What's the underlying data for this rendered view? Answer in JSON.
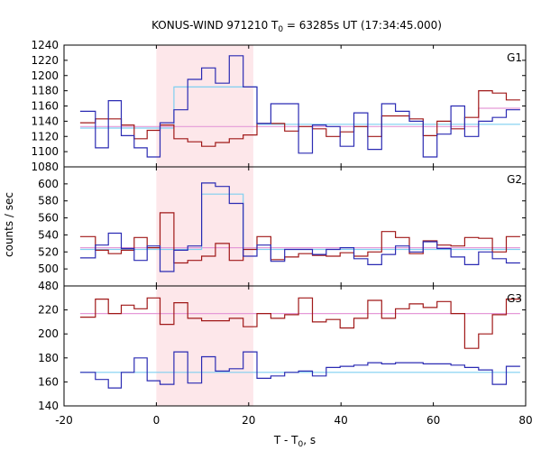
{
  "chart_data": {
    "type": "line",
    "title": {
      "prefix": "KONUS-WIND 971210 T",
      "sub": "0",
      "suffix": " = 63285s UT (17:34:45.000)"
    },
    "xlabel": {
      "prefix": "T - T",
      "sub": "0",
      "suffix": ", s"
    },
    "ylabel": "counts / sec",
    "xlim": [
      -20,
      80
    ],
    "x_ticks": [
      -20,
      0,
      20,
      40,
      60,
      80
    ],
    "highlight_interval": [
      0,
      21
    ],
    "colors": {
      "highlight": "#fde7ea",
      "series_a": "#2b2bb3",
      "series_b": "#a01818",
      "fit_a": "#7fcff0",
      "fit_b": "#e59ad8"
    },
    "x_edges": [
      -16.5,
      -13.2,
      -10.4,
      -7.6,
      -4.8,
      -2,
      0.8,
      3.8,
      6.8,
      9.8,
      12.8,
      15.8,
      18.8,
      21.8,
      24.8,
      27.8,
      30.8,
      33.8,
      36.8,
      39.8,
      42.8,
      45.8,
      48.8,
      51.8,
      54.8,
      57.8,
      60.8,
      63.8,
      66.8,
      69.8,
      72.8,
      75.8,
      78.8
    ],
    "panels": [
      {
        "name": "G1",
        "ylim": [
          1080,
          1240
        ],
        "y_ticks": [
          1080,
          1100,
          1120,
          1140,
          1160,
          1180,
          1200,
          1220,
          1240
        ],
        "series_a": [
          1153,
          1105,
          1167,
          1121,
          1105,
          1093,
          1138,
          1155,
          1195,
          1210,
          1190,
          1226,
          1185,
          1137,
          1163,
          1163,
          1098,
          1135,
          1133,
          1107,
          1151,
          1103,
          1163,
          1153,
          1140,
          1093,
          1123,
          1160,
          1120,
          1140,
          1145,
          1155
        ],
        "series_b": [
          1138,
          1143,
          1143,
          1135,
          1117,
          1128,
          1135,
          1117,
          1113,
          1107,
          1112,
          1117,
          1122,
          1137,
          1137,
          1127,
          1133,
          1130,
          1120,
          1126,
          1133,
          1120,
          1147,
          1147,
          1143,
          1121,
          1140,
          1130,
          1145,
          1180,
          1177,
          1168
        ],
        "fit_a": [
          1131,
          1131,
          1131,
          1131,
          1131,
          1131,
          1131,
          1185,
          1185,
          1185,
          1185,
          1185,
          1185,
          1136,
          1136,
          1136,
          1136,
          1136,
          1136,
          1136,
          1136,
          1136,
          1136,
          1136,
          1136,
          1136,
          1136,
          1136,
          1136,
          1136,
          1136,
          1136
        ],
        "fit_b": [
          1133,
          1133,
          1133,
          1133,
          1133,
          1133,
          1133,
          1133,
          1133,
          1133,
          1133,
          1133,
          1133,
          1133,
          1133,
          1133,
          1133,
          1133,
          1133,
          1133,
          1133,
          1133,
          1133,
          1133,
          1133,
          1133,
          1133,
          1133,
          1133,
          1157,
          1157,
          1157
        ]
      },
      {
        "name": "G2",
        "ylim": [
          480,
          620
        ],
        "y_ticks": [
          480,
          500,
          520,
          540,
          560,
          580,
          600
        ],
        "series_a": [
          513,
          528,
          542,
          524,
          510,
          527,
          497,
          522,
          527,
          601,
          597,
          577,
          515,
          528,
          509,
          523,
          523,
          517,
          523,
          525,
          512,
          505,
          517,
          527,
          520,
          532,
          524,
          514,
          505,
          520,
          512,
          507
        ],
        "series_b": [
          538,
          522,
          518,
          522,
          537,
          525,
          566,
          507,
          510,
          515,
          530,
          510,
          523,
          538,
          511,
          514,
          518,
          516,
          515,
          519,
          515,
          520,
          544,
          537,
          518,
          533,
          528,
          527,
          537,
          536,
          520,
          538
        ],
        "fit_a": [
          523,
          523,
          523,
          523,
          523,
          523,
          523,
          523,
          523,
          588,
          588,
          588,
          523,
          523,
          523,
          523,
          523,
          523,
          523,
          523,
          523,
          523,
          523,
          523,
          523,
          523,
          523,
          523,
          523,
          523,
          523,
          523
        ],
        "fit_b": [
          525,
          525,
          525,
          525,
          525,
          525,
          525,
          525,
          525,
          525,
          525,
          525,
          525,
          525,
          525,
          525,
          525,
          525,
          525,
          525,
          525,
          525,
          525,
          525,
          525,
          525,
          525,
          525,
          525,
          525,
          525,
          525
        ]
      },
      {
        "name": "G3",
        "ylim": [
          140,
          240
        ],
        "y_ticks": [
          140,
          160,
          180,
          200,
          220
        ],
        "series_a": [
          168,
          162,
          155,
          168,
          180,
          161,
          158,
          185,
          159,
          181,
          169,
          171,
          185,
          163,
          165,
          168,
          169,
          165,
          172,
          173,
          174,
          176,
          175,
          176,
          176,
          175,
          175,
          174,
          172,
          170,
          158,
          173
        ],
        "series_b": [
          214,
          229,
          217,
          224,
          221,
          230,
          208,
          226,
          213,
          211,
          211,
          213,
          206,
          217,
          213,
          216,
          230,
          210,
          212,
          205,
          213,
          228,
          213,
          221,
          225,
          222,
          227,
          217,
          188,
          200,
          216,
          229
        ],
        "fit_a": [
          168,
          168,
          168,
          168,
          168,
          168,
          168,
          168,
          168,
          168,
          168,
          168,
          168,
          168,
          168,
          168,
          168,
          168,
          168,
          168,
          168,
          168,
          168,
          168,
          168,
          168,
          168,
          168,
          168,
          168,
          168,
          168
        ],
        "fit_b": [
          217,
          217,
          217,
          217,
          217,
          217,
          217,
          217,
          217,
          217,
          217,
          217,
          217,
          217,
          217,
          217,
          217,
          217,
          217,
          217,
          217,
          217,
          217,
          217,
          217,
          217,
          217,
          217,
          217,
          217,
          217,
          217
        ]
      }
    ]
  }
}
